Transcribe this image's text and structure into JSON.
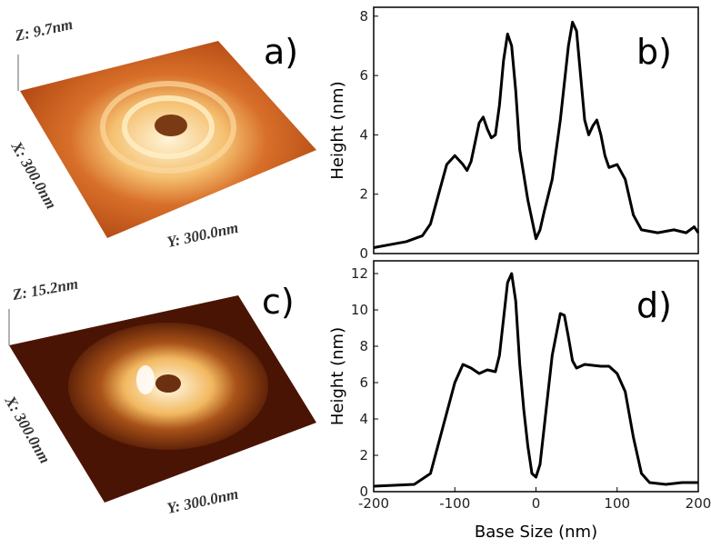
{
  "images": [
    {
      "label": "a)",
      "z": "Z: 9.7nm",
      "x": "X: 300.0nm",
      "y": "Y: 300.0nm"
    },
    {
      "label": "c)",
      "z": "Z: 15.2nm",
      "x": "X: 300.0nm",
      "y": "Y: 300.0nm"
    }
  ],
  "chart_data": [
    {
      "type": "line",
      "annotation": "b)",
      "ylabel": "Height (nm)",
      "x": [
        -200,
        -180,
        -160,
        -140,
        -130,
        -120,
        -110,
        -100,
        -90,
        -85,
        -80,
        -70,
        -65,
        -60,
        -55,
        -50,
        -45,
        -40,
        -35,
        -30,
        -25,
        -20,
        -10,
        0,
        5,
        10,
        20,
        30,
        40,
        45,
        50,
        55,
        60,
        65,
        70,
        75,
        80,
        85,
        90,
        100,
        110,
        120,
        130,
        150,
        170,
        185,
        195,
        200
      ],
      "series": [
        {
          "color": "#000000",
          "values": [
            0.2,
            0.3,
            0.4,
            0.6,
            1.0,
            2.0,
            3.0,
            3.3,
            3.0,
            2.8,
            3.1,
            4.4,
            4.6,
            4.2,
            3.9,
            4.0,
            5.0,
            6.5,
            7.4,
            7.0,
            5.5,
            3.5,
            1.8,
            0.5,
            0.8,
            1.4,
            2.5,
            4.5,
            7.0,
            7.8,
            7.5,
            6.0,
            4.5,
            4.0,
            4.3,
            4.5,
            4.0,
            3.3,
            2.9,
            3.0,
            2.5,
            1.3,
            0.8,
            0.7,
            0.8,
            0.7,
            0.9,
            0.7
          ]
        }
      ],
      "xlim": [
        -200,
        200
      ],
      "ylim": [
        0,
        8.3
      ],
      "yticks": [
        0,
        2,
        4,
        6,
        8
      ]
    },
    {
      "type": "line",
      "annotation": "d)",
      "ylabel": "Height (nm)",
      "xlabel": "Base Size (nm)",
      "x": [
        -200,
        -150,
        -130,
        -115,
        -100,
        -90,
        -80,
        -70,
        -60,
        -50,
        -45,
        -40,
        -35,
        -30,
        -25,
        -20,
        -15,
        -10,
        -5,
        0,
        5,
        10,
        20,
        30,
        35,
        40,
        45,
        50,
        60,
        80,
        90,
        100,
        110,
        120,
        130,
        140,
        160,
        180,
        200
      ],
      "series": [
        {
          "color": "#000000",
          "values": [
            0.3,
            0.4,
            1.0,
            3.5,
            6.0,
            7.0,
            6.8,
            6.5,
            6.7,
            6.6,
            7.5,
            9.5,
            11.5,
            12.0,
            10.5,
            7.0,
            4.5,
            2.5,
            1.0,
            0.8,
            1.5,
            3.5,
            7.5,
            9.8,
            9.7,
            8.5,
            7.2,
            6.8,
            7.0,
            6.9,
            6.9,
            6.5,
            5.5,
            3.0,
            1.0,
            0.5,
            0.4,
            0.5,
            0.5
          ]
        }
      ],
      "xlim": [
        -200,
        200
      ],
      "xticks": [
        -200,
        -100,
        0,
        100,
        200
      ],
      "ylim": [
        0,
        12.7
      ],
      "yticks": [
        0,
        2,
        4,
        6,
        8,
        10,
        12
      ]
    }
  ]
}
